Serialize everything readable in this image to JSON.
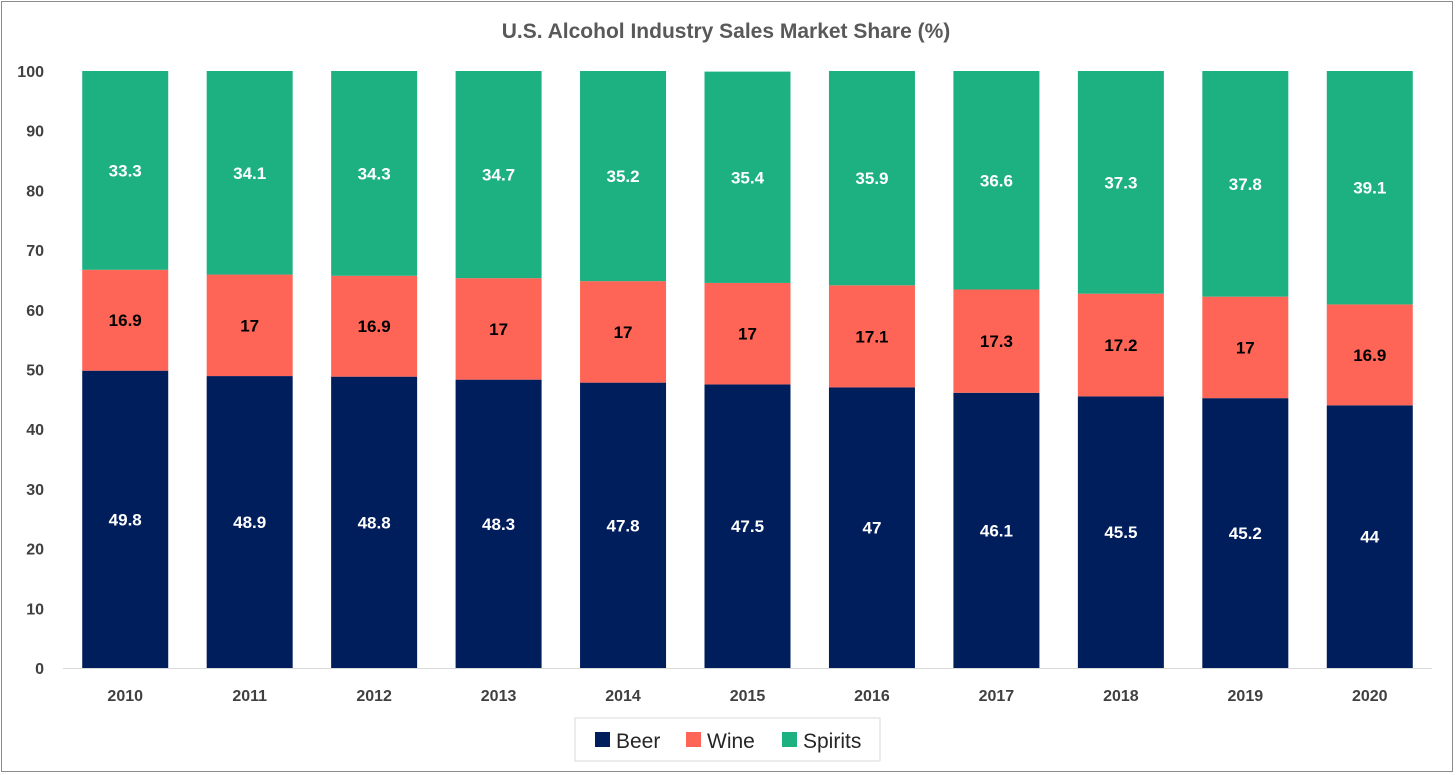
{
  "chart_data": {
    "type": "bar",
    "stacked": true,
    "title": "U.S. Alcohol Industry Sales Market Share (%)",
    "xlabel": "",
    "ylabel": "",
    "categories": [
      "2010",
      "2011",
      "2012",
      "2013",
      "2014",
      "2015",
      "2016",
      "2017",
      "2018",
      "2019",
      "2020"
    ],
    "ylim": [
      0,
      100
    ],
    "yticks": [
      0,
      10,
      20,
      30,
      40,
      50,
      60,
      70,
      80,
      90,
      100
    ],
    "grid": false,
    "legend_position": "bottom",
    "series": [
      {
        "name": "Beer",
        "color": "#001d5c",
        "label_color": "#ffffff",
        "values": [
          49.8,
          48.9,
          48.8,
          48.3,
          47.8,
          47.5,
          47,
          46.1,
          45.5,
          45.2,
          44
        ]
      },
      {
        "name": "Wine",
        "color": "#fe6557",
        "label_color": "#000000",
        "values": [
          16.9,
          17,
          16.9,
          17,
          17,
          17,
          17.1,
          17.3,
          17.2,
          17,
          16.9
        ]
      },
      {
        "name": "Spirits",
        "color": "#1db182",
        "label_color": "#ffffff",
        "values": [
          33.3,
          34.1,
          34.3,
          34.7,
          35.2,
          35.4,
          35.9,
          36.6,
          37.3,
          37.8,
          39.1
        ]
      }
    ]
  }
}
